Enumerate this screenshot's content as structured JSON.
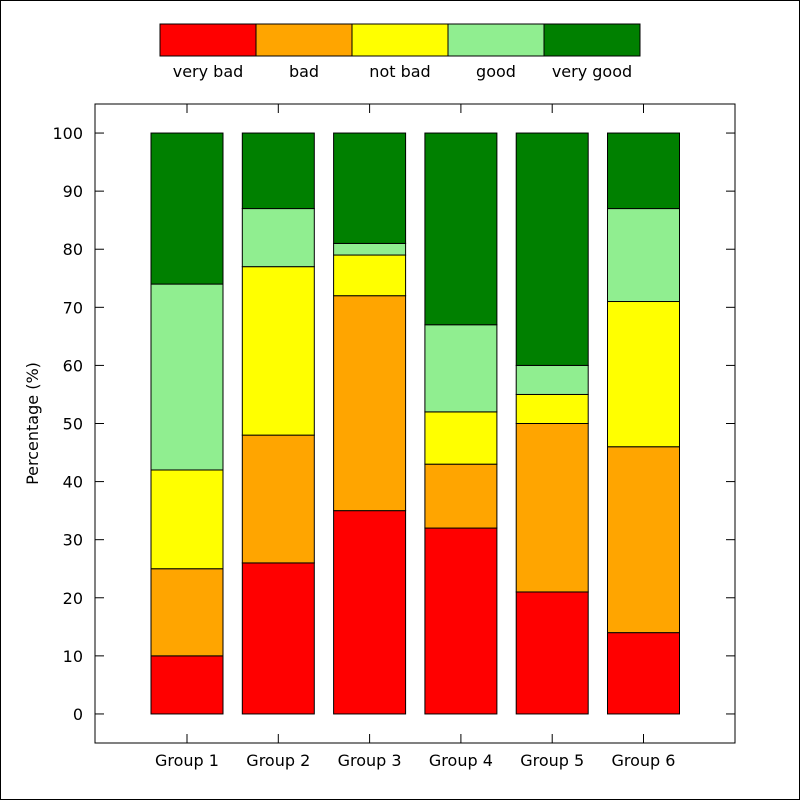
{
  "chart_data": {
    "type": "bar",
    "stacked": true,
    "title": "",
    "xlabel": "",
    "ylabel": "Percentage (%)",
    "ylim": [
      -5,
      105
    ],
    "yticks": [
      0,
      10,
      20,
      30,
      40,
      50,
      60,
      70,
      80,
      90,
      100
    ],
    "grid": false,
    "legend_position": "top",
    "categories": [
      "Group 1",
      "Group 2",
      "Group 3",
      "Group 4",
      "Group 5",
      "Group 6"
    ],
    "series": [
      {
        "name": "very bad",
        "color": "#ff0000",
        "values": [
          10,
          26,
          35,
          32,
          21,
          14
        ]
      },
      {
        "name": "bad",
        "color": "#ffa500",
        "values": [
          15,
          22,
          37,
          11,
          29,
          32
        ]
      },
      {
        "name": "not bad",
        "color": "#ffff00",
        "values": [
          17,
          29,
          7,
          9,
          5,
          25
        ]
      },
      {
        "name": "good",
        "color": "#90ee90",
        "values": [
          32,
          10,
          2,
          15,
          5,
          16
        ]
      },
      {
        "name": "very good",
        "color": "#008000",
        "values": [
          26,
          13,
          19,
          33,
          40,
          13
        ]
      }
    ]
  }
}
